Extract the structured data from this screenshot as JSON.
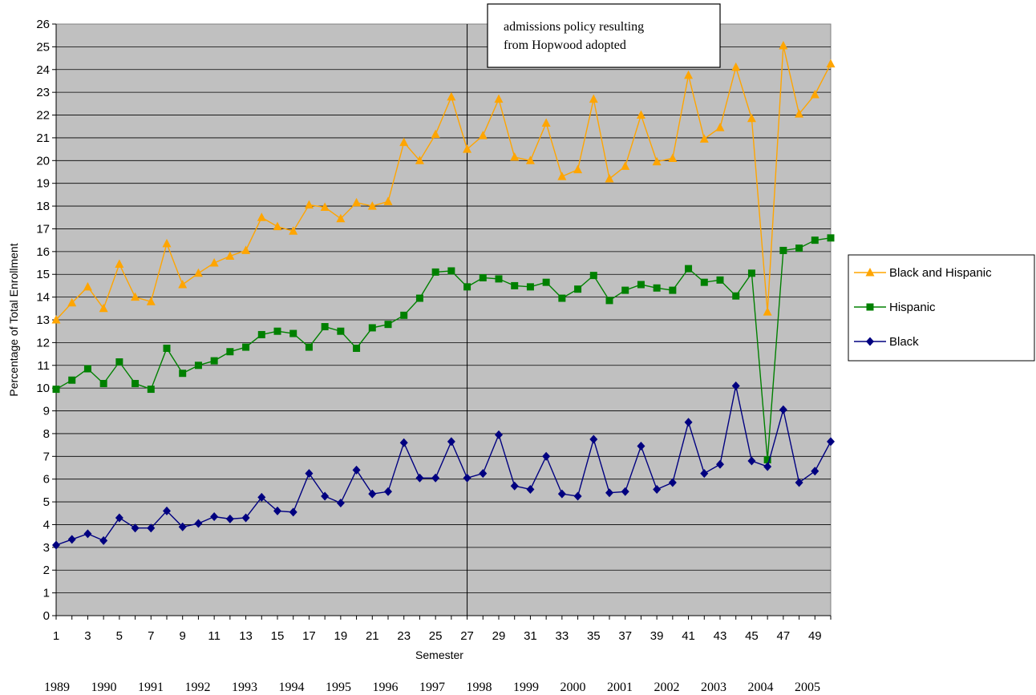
{
  "chart_data": {
    "type": "line",
    "xlabel": "Semester",
    "ylabel": "Percentage of Total Enrollment",
    "ylim": [
      0,
      26
    ],
    "xlim": [
      1,
      50
    ],
    "y_ticks": [
      0,
      1,
      2,
      3,
      4,
      5,
      6,
      7,
      8,
      9,
      10,
      11,
      12,
      13,
      14,
      15,
      16,
      17,
      18,
      19,
      20,
      21,
      22,
      23,
      24,
      25,
      26
    ],
    "x_tick_labels": [
      "1",
      "3",
      "5",
      "7",
      "9",
      "11",
      "13",
      "15",
      "17",
      "19",
      "21",
      "23",
      "25",
      "27",
      "29",
      "31",
      "33",
      "35",
      "37",
      "39",
      "41",
      "43",
      "45",
      "47",
      "49"
    ],
    "year_labels": [
      "1989",
      "1990",
      "1991",
      "1992",
      "1993",
      "1994",
      "1995",
      "1996",
      "1997",
      "1998",
      "1999",
      "2000",
      "2001",
      "2002",
      "2003",
      "2004",
      "2005"
    ],
    "grid": true,
    "legend_position": "right",
    "plot_background": "#c0c0c0",
    "annotation": {
      "text_lines": [
        "admissions policy resulting",
        "from Hopwood adopted"
      ],
      "x": 27
    },
    "series": [
      {
        "name": "Black and Hispanic",
        "color": "#ffa500",
        "marker": "triangle",
        "values": [
          13.0,
          13.75,
          14.45,
          13.5,
          15.45,
          14.0,
          13.8,
          16.35,
          14.55,
          15.05,
          15.5,
          15.8,
          16.05,
          17.5,
          17.1,
          16.9,
          18.05,
          17.95,
          17.45,
          18.15,
          18.0,
          18.2,
          20.8,
          20.0,
          21.15,
          22.8,
          20.5,
          21.1,
          22.7,
          20.15,
          20.0,
          21.65,
          19.3,
          19.6,
          22.7,
          19.2,
          19.75,
          22.0,
          19.95,
          20.1,
          23.75,
          20.95,
          21.45,
          24.1,
          21.85,
          13.35,
          25.05,
          22.05,
          22.9,
          24.25
        ]
      },
      {
        "name": "Hispanic",
        "color": "#008000",
        "marker": "square",
        "values": [
          9.95,
          10.35,
          10.85,
          10.2,
          11.15,
          10.2,
          9.95,
          11.75,
          10.65,
          11.0,
          11.2,
          11.6,
          11.8,
          12.35,
          12.5,
          12.4,
          11.8,
          12.7,
          12.5,
          11.75,
          12.65,
          12.8,
          13.2,
          13.95,
          15.1,
          15.15,
          14.45,
          14.85,
          14.8,
          14.5,
          14.45,
          14.65,
          13.95,
          14.35,
          14.95,
          13.85,
          14.3,
          14.55,
          14.4,
          14.3,
          15.25,
          14.65,
          14.75,
          14.05,
          15.05,
          6.85,
          16.05,
          16.15,
          16.5,
          16.6
        ]
      },
      {
        "name": "Black",
        "color": "#000080",
        "marker": "diamond",
        "values": [
          3.1,
          3.35,
          3.6,
          3.3,
          4.3,
          3.85,
          3.85,
          4.6,
          3.9,
          4.05,
          4.35,
          4.25,
          4.3,
          5.2,
          4.6,
          4.55,
          6.25,
          5.25,
          4.95,
          6.4,
          5.35,
          5.45,
          7.6,
          6.05,
          6.05,
          7.65,
          6.05,
          6.25,
          7.95,
          5.7,
          5.55,
          7.0,
          5.35,
          5.25,
          7.75,
          5.4,
          5.45,
          7.45,
          5.55,
          5.85,
          8.5,
          6.25,
          6.65,
          10.1,
          6.8,
          6.55,
          9.05,
          5.85,
          6.35,
          7.65
        ]
      }
    ]
  }
}
